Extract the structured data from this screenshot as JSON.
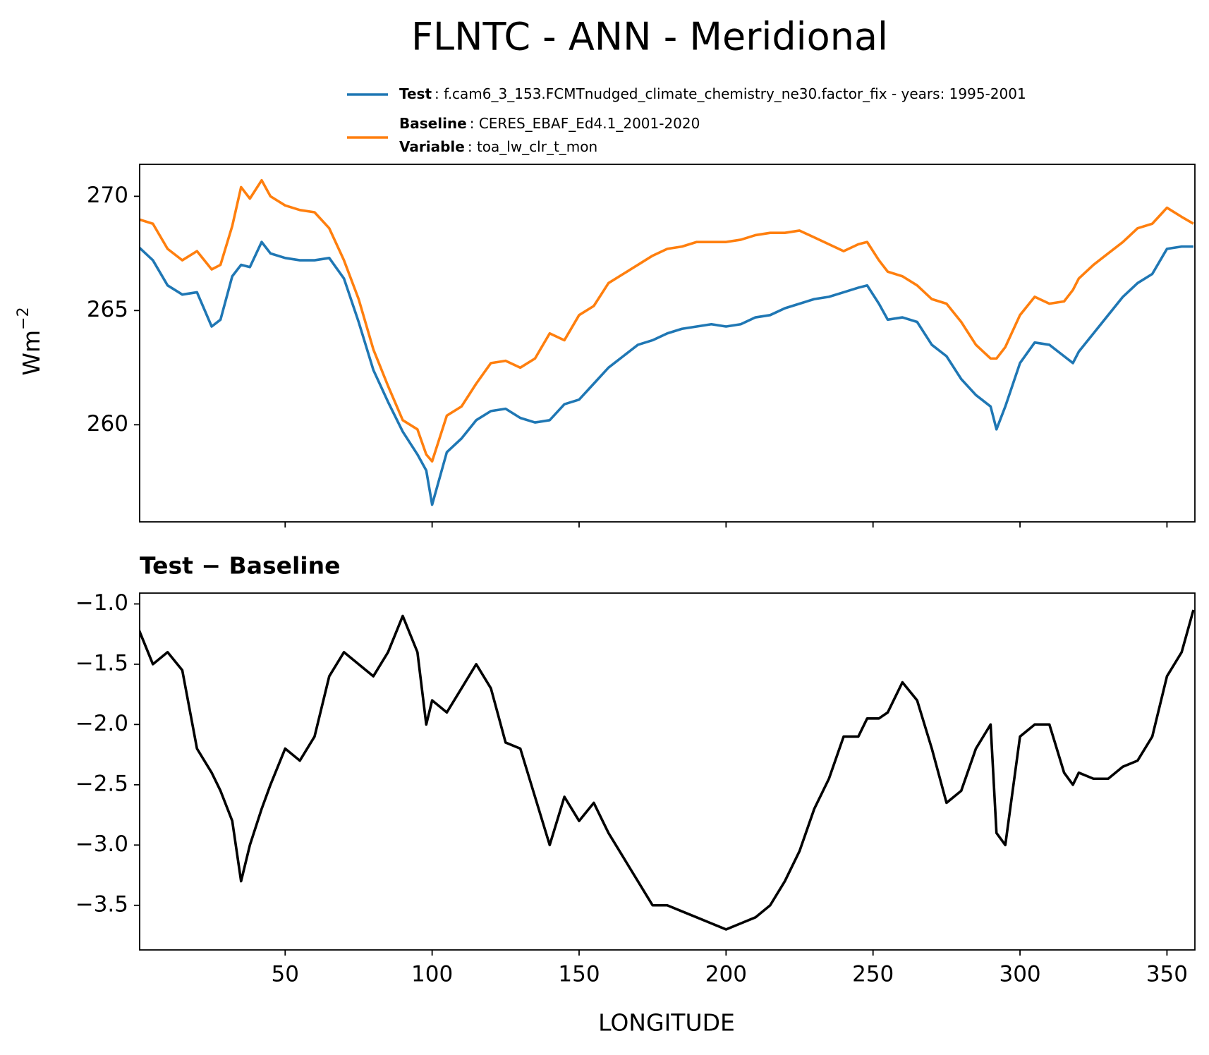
{
  "chart_data": [
    {
      "type": "line",
      "title": "FLNTC - ANN - Meridional",
      "ylabel": {
        "base": "Wm",
        "sup": "−2"
      },
      "legend": [
        {
          "label": "Test",
          "text": ": f.cam6_3_153.FCMTnudged_climate_chemistry_ne30.factor_fix - years: 1995-2001"
        },
        {
          "label": "Baseline",
          "text": ": CERES_EBAF_Ed4.1_2001-2020"
        },
        {
          "label": "Variable",
          "text": ": toa_lw_clr_t_mon"
        }
      ],
      "x": [
        0,
        5,
        10,
        15,
        20,
        25,
        28,
        32,
        35,
        38,
        42,
        45,
        50,
        55,
        60,
        65,
        70,
        75,
        80,
        85,
        90,
        95,
        98,
        100,
        105,
        110,
        115,
        120,
        125,
        130,
        135,
        140,
        145,
        150,
        155,
        160,
        165,
        170,
        175,
        180,
        185,
        190,
        195,
        200,
        205,
        210,
        215,
        220,
        225,
        230,
        235,
        240,
        245,
        248,
        252,
        255,
        260,
        265,
        270,
        275,
        280,
        285,
        290,
        292,
        295,
        300,
        305,
        310,
        315,
        318,
        320,
        325,
        330,
        335,
        340,
        345,
        350,
        355,
        359
      ],
      "series": [
        {
          "name": "Test",
          "color": "#1f77b4",
          "values": [
            267.8,
            267.2,
            266.1,
            265.7,
            265.8,
            264.3,
            264.6,
            266.5,
            267.0,
            266.9,
            268.0,
            267.5,
            267.3,
            267.2,
            267.2,
            267.3,
            266.4,
            264.5,
            262.4,
            261.0,
            259.7,
            258.7,
            258.0,
            256.5,
            258.8,
            259.4,
            260.2,
            260.6,
            260.7,
            260.3,
            260.1,
            260.2,
            260.9,
            261.1,
            261.8,
            262.5,
            263.0,
            263.5,
            263.7,
            264.0,
            264.2,
            264.3,
            264.4,
            264.3,
            264.4,
            264.7,
            264.8,
            265.1,
            265.3,
            265.5,
            265.6,
            265.8,
            266.0,
            266.1,
            265.3,
            264.6,
            264.7,
            264.5,
            263.5,
            263.0,
            262.0,
            261.3,
            260.8,
            259.8,
            260.8,
            262.7,
            263.6,
            263.5,
            263.0,
            262.7,
            263.2,
            264.0,
            264.8,
            265.6,
            266.2,
            266.6,
            267.7,
            267.8,
            267.8
          ]
        },
        {
          "name": "Baseline",
          "color": "#ff7f0e",
          "values": [
            269.0,
            268.8,
            267.7,
            267.2,
            267.6,
            266.8,
            267.0,
            268.7,
            270.4,
            269.9,
            270.7,
            270.0,
            269.6,
            269.4,
            269.3,
            268.6,
            267.2,
            265.5,
            263.3,
            261.7,
            260.2,
            259.8,
            258.7,
            258.4,
            260.4,
            260.8,
            261.8,
            262.7,
            262.8,
            262.5,
            262.9,
            264.0,
            263.7,
            264.8,
            265.2,
            266.2,
            266.6,
            267.0,
            267.4,
            267.7,
            267.8,
            268.0,
            268.0,
            268.0,
            268.1,
            268.3,
            268.4,
            268.4,
            268.5,
            268.2,
            267.9,
            267.6,
            267.9,
            268.0,
            267.2,
            266.7,
            266.5,
            266.1,
            265.5,
            265.3,
            264.5,
            263.5,
            262.9,
            262.9,
            263.4,
            264.8,
            265.6,
            265.3,
            265.4,
            265.9,
            266.4,
            267.0,
            267.5,
            268.0,
            268.6,
            268.8,
            269.5,
            269.1,
            268.8
          ]
        }
      ],
      "xlim": [
        0.5,
        359.5
      ],
      "xticks": [
        50,
        100,
        150,
        200,
        250,
        300,
        350
      ],
      "ylim": [
        255.75,
        271.4
      ],
      "yticks": [
        260,
        265,
        270
      ]
    },
    {
      "type": "line",
      "title": "Test − Baseline",
      "xlabel": "LONGITUDE",
      "x": [
        0,
        5,
        10,
        15,
        20,
        25,
        28,
        32,
        35,
        38,
        42,
        45,
        50,
        55,
        60,
        65,
        70,
        75,
        80,
        85,
        90,
        95,
        98,
        100,
        105,
        110,
        115,
        120,
        125,
        130,
        135,
        140,
        145,
        150,
        155,
        160,
        165,
        170,
        175,
        180,
        185,
        190,
        195,
        200,
        205,
        210,
        215,
        220,
        225,
        230,
        235,
        240,
        245,
        248,
        252,
        255,
        260,
        265,
        270,
        275,
        280,
        285,
        290,
        292,
        295,
        300,
        305,
        310,
        315,
        318,
        320,
        325,
        330,
        335,
        340,
        345,
        350,
        355,
        359
      ],
      "series": [
        {
          "color": "#000000",
          "values": [
            -1.2,
            -1.5,
            -1.4,
            -1.55,
            -2.2,
            -2.4,
            -2.55,
            -2.8,
            -3.3,
            -3.0,
            -2.7,
            -2.5,
            -2.2,
            -2.3,
            -2.1,
            -1.6,
            -1.4,
            -1.5,
            -1.6,
            -1.4,
            -1.1,
            -1.4,
            -2.0,
            -1.8,
            -1.9,
            -1.7,
            -1.5,
            -1.7,
            -2.15,
            -2.2,
            -2.6,
            -3.0,
            -2.6,
            -2.8,
            -2.65,
            -2.9,
            -3.1,
            -3.3,
            -3.5,
            -3.5,
            -3.55,
            -3.6,
            -3.65,
            -3.7,
            -3.65,
            -3.6,
            -3.5,
            -3.3,
            -3.05,
            -2.7,
            -2.45,
            -2.1,
            -2.1,
            -1.95,
            -1.95,
            -1.9,
            -1.65,
            -1.8,
            -2.2,
            -2.65,
            -2.55,
            -2.2,
            -2.0,
            -2.9,
            -3.0,
            -2.1,
            -2.0,
            -2.0,
            -2.4,
            -2.5,
            -2.4,
            -2.45,
            -2.45,
            -2.35,
            -2.3,
            -2.1,
            -1.6,
            -1.4,
            -1.05
          ]
        }
      ],
      "xlim": [
        0.5,
        359.5
      ],
      "xticks": [
        50,
        100,
        150,
        200,
        250,
        300,
        350
      ],
      "ylim": [
        -3.87,
        -0.91
      ],
      "yticks": [
        {
          "value": -3.5,
          "label": "−3.5"
        },
        {
          "value": -3.0,
          "label": "−3.0"
        },
        {
          "value": -2.5,
          "label": "−2.5"
        },
        {
          "value": -2.0,
          "label": "−2.0"
        },
        {
          "value": -1.5,
          "label": "−1.5"
        },
        {
          "value": -1.0,
          "label": "−1.0"
        }
      ]
    }
  ]
}
